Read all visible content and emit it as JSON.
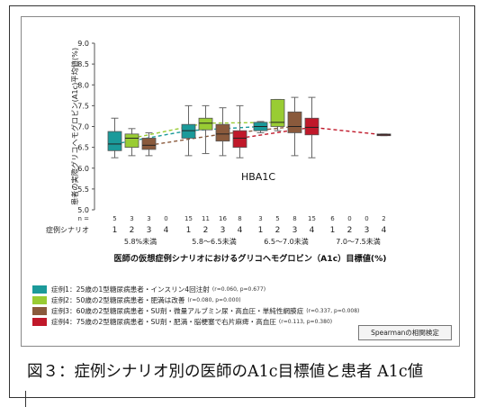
{
  "figure": {
    "caption": "図３：症例シナリオ別の医師のA1c目標値と患者 A1c値"
  },
  "chart_data": {
    "type": "box",
    "inner_label": "HBA1C",
    "xlabel": "医師の仮想症例シナリオにおけるグリコヘモグロビン（A1c）目標値(%)",
    "ylabel": "患者の実際グリコヘモグロビン(A1c)平均値(%)",
    "ylim": [
      5.0,
      9.0
    ],
    "yticks": [
      "9.0",
      "8.5",
      "8.0",
      "7.5",
      "7.0",
      "6.5",
      "6.0",
      "5.5",
      "5.0"
    ],
    "row_labels": {
      "n": "n =",
      "scenario": "症例シナリオ"
    },
    "groups": [
      {
        "label": "5.8%未満",
        "scenarios": [
          "1",
          "2",
          "3",
          "4"
        ],
        "n": [
          "5",
          "3",
          "3",
          "0"
        ]
      },
      {
        "label": "5.8～6.5未満",
        "scenarios": [
          "1",
          "2",
          "3",
          "4"
        ],
        "n": [
          "15",
          "11",
          "16",
          "8"
        ]
      },
      {
        "label": "6.5～7.0未満",
        "scenarios": [
          "1",
          "2",
          "3",
          "4"
        ],
        "n": [
          "3",
          "5",
          "8",
          "15"
        ]
      },
      {
        "label": "7.0～7.5未満",
        "scenarios": [
          "1",
          "2",
          "3",
          "4"
        ],
        "n": [
          "6",
          "0",
          "0",
          "2"
        ]
      }
    ],
    "boxes": [
      {
        "group": 0,
        "scenario": 1,
        "min": 6.25,
        "q1": 6.42,
        "median": 6.58,
        "q3": 6.88,
        "max": 7.2
      },
      {
        "group": 0,
        "scenario": 2,
        "min": 6.3,
        "q1": 6.5,
        "median": 6.72,
        "q3": 6.82,
        "max": 6.95
      },
      {
        "group": 0,
        "scenario": 3,
        "min": 6.3,
        "q1": 6.45,
        "median": 6.55,
        "q3": 6.72,
        "max": 6.85
      },
      {
        "group": 1,
        "scenario": 1,
        "min": 6.3,
        "q1": 6.72,
        "median": 6.9,
        "q3": 7.05,
        "max": 7.5
      },
      {
        "group": 1,
        "scenario": 2,
        "min": 6.35,
        "q1": 6.92,
        "median": 7.08,
        "q3": 7.2,
        "max": 7.5
      },
      {
        "group": 1,
        "scenario": 3,
        "min": 6.3,
        "q1": 6.65,
        "median": 6.82,
        "q3": 7.05,
        "max": 7.45
      },
      {
        "group": 1,
        "scenario": 4,
        "min": 6.25,
        "q1": 6.5,
        "median": 6.72,
        "q3": 6.9,
        "max": 7.5
      },
      {
        "group": 2,
        "scenario": 1,
        "min": 6.85,
        "q1": 6.9,
        "median": 7.0,
        "q3": 7.1,
        "max": 7.12
      },
      {
        "group": 2,
        "scenario": 2,
        "min": 6.9,
        "q1": 7.0,
        "median": 7.1,
        "q3": 7.65,
        "max": 7.65
      },
      {
        "group": 2,
        "scenario": 3,
        "min": 6.3,
        "q1": 6.85,
        "median": 7.0,
        "q3": 7.35,
        "max": 7.7
      },
      {
        "group": 2,
        "scenario": 4,
        "min": 6.25,
        "q1": 6.8,
        "median": 6.98,
        "q3": 7.2,
        "max": 7.7
      },
      {
        "group": 3,
        "scenario": 4,
        "min": 6.78,
        "q1": 6.78,
        "median": 6.8,
        "q3": 6.82,
        "max": 6.82
      }
    ],
    "trend_medians": [
      {
        "scenario": 1,
        "values": [
          6.58,
          6.9,
          7.0,
          null
        ]
      },
      {
        "scenario": 2,
        "values": [
          6.72,
          7.08,
          7.1,
          null
        ]
      },
      {
        "scenario": 3,
        "values": [
          6.55,
          6.82,
          7.0,
          null
        ]
      },
      {
        "scenario": 4,
        "values": [
          null,
          6.72,
          6.98,
          6.8
        ]
      }
    ],
    "series": [
      {
        "name": "症例1：25歳の1型糖尿病患者・インスリン4回注射",
        "stat": "(r=0.060, p=0.677)",
        "color": "#1b9a9a"
      },
      {
        "name": "症例2：50歳の2型糖尿病患者・肥満は改善",
        "stat": "(r=0.080, p=0.000)",
        "color": "#99cc33"
      },
      {
        "name": "症例3：60歳の2型糖尿病患者・SU剤・微量アルブミン尿・高血圧・単純性網膜症",
        "stat": "(r=0.337, p=0.008)",
        "color": "#8a5a3c"
      },
      {
        "name": "症例4：75歳の2型糖尿病患者・SU剤・肥満・脳梗塞で右片麻痺・高血圧",
        "stat": "(r=0.113, p=0.380)",
        "color": "#c0182a"
      }
    ],
    "grid": false
  },
  "ui": {
    "spearman_button": "Spearmanの相関検定"
  }
}
